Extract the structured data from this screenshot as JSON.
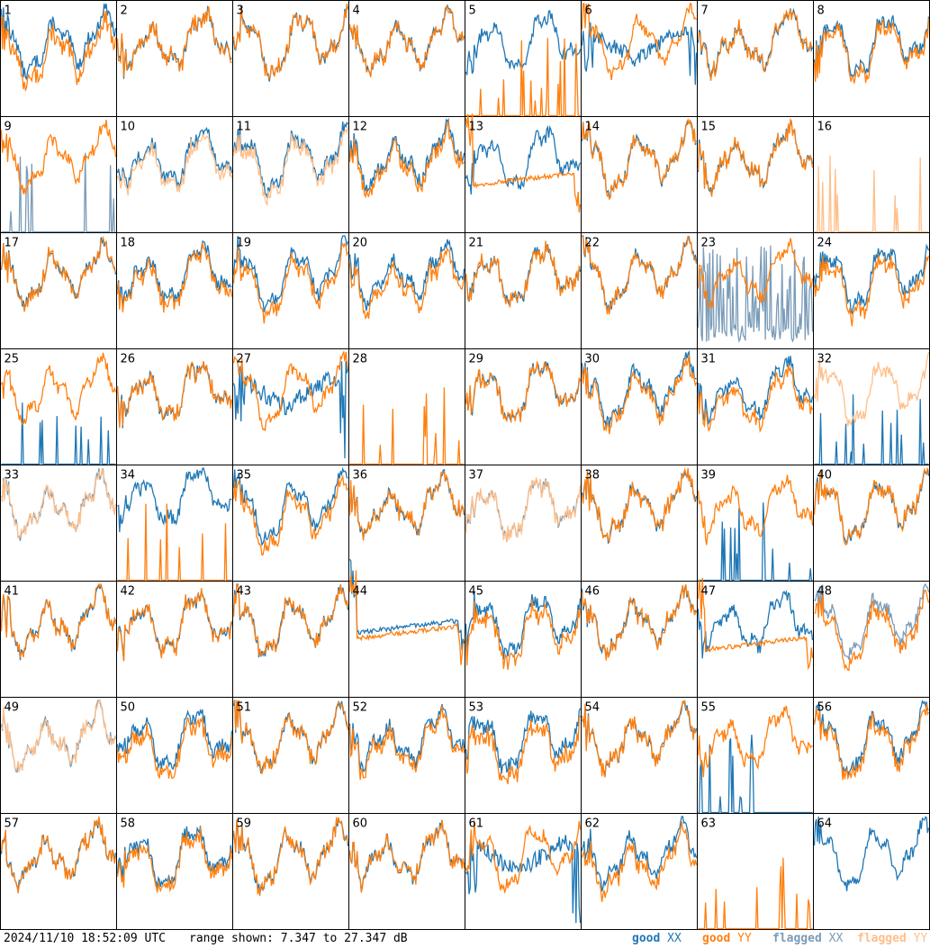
{
  "footer": {
    "timestamp": "2024/11/10 18:52:09 UTC",
    "range_text": "range shown: 7.347 to 27.347 dB"
  },
  "legend": {
    "good_xx": {
      "word": "good",
      "pol": "XX",
      "color": "#1f77b4"
    },
    "good_yy": {
      "word": "good",
      "pol": "YY",
      "color": "#ff7f0e"
    },
    "flagged_xx": {
      "word": "flagged",
      "pol": "XX",
      "color": "#7a9bb8"
    },
    "flagged_yy": {
      "word": "flagged",
      "pol": "YY",
      "color": "#ffbf8a"
    }
  },
  "chart_data": {
    "type": "line",
    "ylim": [
      7.347,
      27.347
    ],
    "units": "dB",
    "panels": [
      {
        "id": "1",
        "xx": "good",
        "yy": "good",
        "shape": "normal",
        "sep": 0.1
      },
      {
        "id": "2",
        "xx": "good",
        "yy": "good",
        "shape": "normal",
        "sep": 0.0
      },
      {
        "id": "3",
        "xx": "good",
        "yy": "good",
        "shape": "normal",
        "sep": 0.0
      },
      {
        "id": "4",
        "xx": "good",
        "yy": "good",
        "shape": "normal",
        "sep": 0.0
      },
      {
        "id": "5",
        "xx": "good",
        "yy": "good",
        "shape": "spikes_yy",
        "sep": 0.0
      },
      {
        "id": "6",
        "xx": "good",
        "yy": "good",
        "shape": "dip_xx",
        "sep": 0.0
      },
      {
        "id": "7",
        "xx": "good",
        "yy": "good",
        "shape": "normal",
        "sep": 0.0
      },
      {
        "id": "8",
        "xx": "good",
        "yy": "good",
        "shape": "normal",
        "sep": 0.05
      },
      {
        "id": "9",
        "xx": "flagged",
        "yy": "good",
        "shape": "spikes_xx",
        "sep": 0.0
      },
      {
        "id": "10",
        "xx": "good",
        "yy": "flagged",
        "shape": "normal",
        "sep": 0.05
      },
      {
        "id": "11",
        "xx": "good",
        "yy": "flagged",
        "shape": "normal",
        "sep": 0.05
      },
      {
        "id": "12",
        "xx": "good",
        "yy": "good",
        "shape": "normal",
        "sep": 0.05
      },
      {
        "id": "13",
        "xx": "good",
        "yy": "good",
        "shape": "yy_low_flat",
        "sep": 0.0
      },
      {
        "id": "14",
        "xx": "good",
        "yy": "good",
        "shape": "normal",
        "sep": 0.0
      },
      {
        "id": "15",
        "xx": "good",
        "yy": "good",
        "shape": "normal",
        "sep": 0.0
      },
      {
        "id": "16",
        "xx": "good",
        "yy": "flagged",
        "shape": "spikes_yy",
        "sep": 0.0
      },
      {
        "id": "17",
        "xx": "good",
        "yy": "good",
        "shape": "normal",
        "sep": 0.0
      },
      {
        "id": "18",
        "xx": "good",
        "yy": "good",
        "shape": "normal",
        "sep": 0.05
      },
      {
        "id": "19",
        "xx": "good",
        "yy": "good",
        "shape": "normal",
        "sep": 0.08
      },
      {
        "id": "20",
        "xx": "good",
        "yy": "good",
        "shape": "normal",
        "sep": 0.08
      },
      {
        "id": "21",
        "xx": "good",
        "yy": "good",
        "shape": "normal",
        "sep": 0.0
      },
      {
        "id": "22",
        "xx": "good",
        "yy": "good",
        "shape": "normal",
        "sep": 0.0
      },
      {
        "id": "23",
        "xx": "flagged",
        "yy": "good",
        "shape": "xx_noisy_low",
        "sep": 0.0
      },
      {
        "id": "24",
        "xx": "good",
        "yy": "good",
        "shape": "normal",
        "sep": 0.08
      },
      {
        "id": "25",
        "xx": "good",
        "yy": "good",
        "shape": "yy_only_xx_spikes",
        "sep": 0.0
      },
      {
        "id": "26",
        "xx": "good",
        "yy": "good",
        "shape": "normal",
        "sep": 0.0
      },
      {
        "id": "27",
        "xx": "good",
        "yy": "good",
        "shape": "dip_xx",
        "sep": 0.0
      },
      {
        "id": "28",
        "xx": "good",
        "yy": "good",
        "shape": "spikes_yy",
        "sep": 0.0
      },
      {
        "id": "29",
        "xx": "good",
        "yy": "good",
        "shape": "normal",
        "sep": 0.0
      },
      {
        "id": "30",
        "xx": "good",
        "yy": "good",
        "shape": "normal",
        "sep": 0.05
      },
      {
        "id": "31",
        "xx": "good",
        "yy": "good",
        "shape": "normal",
        "sep": 0.08
      },
      {
        "id": "32",
        "xx": "good",
        "yy": "flagged",
        "shape": "yy_only_xx_spikes",
        "sep": 0.0
      },
      {
        "id": "33",
        "xx": "flagged",
        "yy": "flagged",
        "shape": "normal",
        "sep": 0.0
      },
      {
        "id": "34",
        "xx": "good",
        "yy": "good",
        "shape": "spikes_yy_xx_high",
        "sep": 0.0
      },
      {
        "id": "35",
        "xx": "good",
        "yy": "good",
        "shape": "normal",
        "sep": 0.08
      },
      {
        "id": "36",
        "xx": "good",
        "yy": "good",
        "shape": "normal",
        "sep": 0.0
      },
      {
        "id": "37",
        "xx": "flagged",
        "yy": "flagged",
        "shape": "normal",
        "sep": 0.0
      },
      {
        "id": "38",
        "xx": "good",
        "yy": "good",
        "shape": "normal",
        "sep": 0.0
      },
      {
        "id": "39",
        "xx": "good",
        "yy": "good",
        "shape": "yy_only_xx_spikes",
        "sep": 0.0
      },
      {
        "id": "40",
        "xx": "good",
        "yy": "good",
        "shape": "normal",
        "sep": 0.0
      },
      {
        "id": "41",
        "xx": "good",
        "yy": "good",
        "shape": "normal",
        "sep": 0.0
      },
      {
        "id": "42",
        "xx": "good",
        "yy": "good",
        "shape": "normal",
        "sep": 0.0
      },
      {
        "id": "43",
        "xx": "good",
        "yy": "good",
        "shape": "normal",
        "sep": 0.0
      },
      {
        "id": "44",
        "xx": "good",
        "yy": "good",
        "shape": "flat_mid",
        "sep": 0.0
      },
      {
        "id": "45",
        "xx": "good",
        "yy": "good",
        "shape": "normal",
        "sep": 0.08
      },
      {
        "id": "46",
        "xx": "good",
        "yy": "good",
        "shape": "normal",
        "sep": 0.0
      },
      {
        "id": "47",
        "xx": "good",
        "yy": "good",
        "shape": "yy_low_flat",
        "sep": 0.0
      },
      {
        "id": "48",
        "xx": "flagged",
        "yy": "good",
        "shape": "normal",
        "sep": 0.08
      },
      {
        "id": "49",
        "xx": "flagged",
        "yy": "flagged",
        "shape": "normal",
        "sep": 0.0
      },
      {
        "id": "50",
        "xx": "good",
        "yy": "good",
        "shape": "normal",
        "sep": 0.08
      },
      {
        "id": "51",
        "xx": "good",
        "yy": "good",
        "shape": "normal",
        "sep": 0.0
      },
      {
        "id": "52",
        "xx": "good",
        "yy": "good",
        "shape": "normal",
        "sep": 0.05
      },
      {
        "id": "53",
        "xx": "good",
        "yy": "good",
        "shape": "normal",
        "sep": 0.1
      },
      {
        "id": "54",
        "xx": "good",
        "yy": "good",
        "shape": "normal",
        "sep": 0.0
      },
      {
        "id": "55",
        "xx": "good",
        "yy": "good",
        "shape": "yy_only_xx_spikes",
        "sep": 0.0
      },
      {
        "id": "56",
        "xx": "good",
        "yy": "good",
        "shape": "normal",
        "sep": 0.05
      },
      {
        "id": "57",
        "xx": "good",
        "yy": "good",
        "shape": "normal",
        "sep": 0.0
      },
      {
        "id": "58",
        "xx": "good",
        "yy": "good",
        "shape": "normal",
        "sep": 0.05
      },
      {
        "id": "59",
        "xx": "good",
        "yy": "good",
        "shape": "normal",
        "sep": 0.0
      },
      {
        "id": "60",
        "xx": "good",
        "yy": "good",
        "shape": "normal",
        "sep": 0.0
      },
      {
        "id": "61",
        "xx": "good",
        "yy": "good",
        "shape": "dip_xx",
        "sep": 0.0
      },
      {
        "id": "62",
        "xx": "good",
        "yy": "good",
        "shape": "normal",
        "sep": 0.08
      },
      {
        "id": "63",
        "xx": "good",
        "yy": "good",
        "shape": "spikes_yy",
        "sep": 0.0
      },
      {
        "id": "64",
        "xx": "good",
        "yy": "good",
        "shape": "xx_only",
        "sep": 0.0
      }
    ]
  }
}
